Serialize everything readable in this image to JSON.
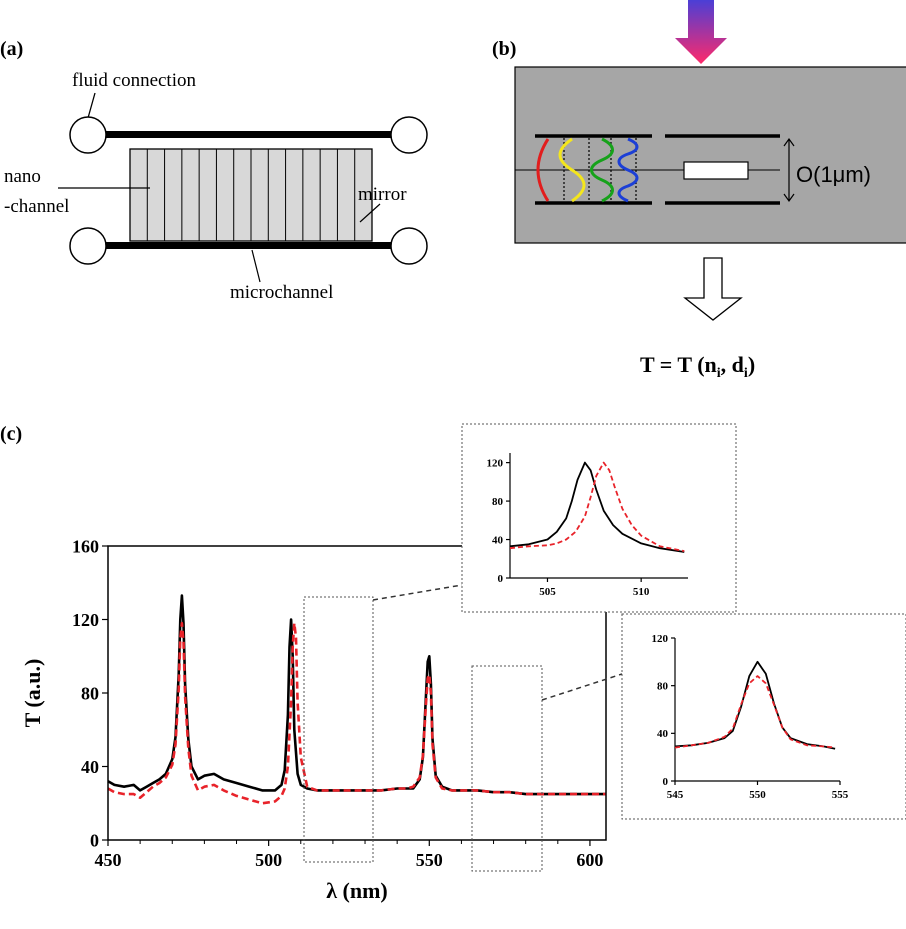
{
  "panel_a": {
    "label": "(a)",
    "fluid_connection": "fluid connection",
    "nano_line1": "nano",
    "nano_line2": "-channel",
    "mirror": "mirror",
    "microchannel": "microchannel"
  },
  "panel_b": {
    "label": "(b)",
    "scale": "O(1μm)",
    "formula": {
      "lhs": "T = T (",
      "n": "n",
      "n_sub": "i",
      "sep": ", ",
      "d": "d",
      "d_sub": "i",
      "close": ")"
    },
    "wave_colors": [
      "#e21d1d",
      "#f4e61c",
      "#16a21a",
      "#1c3fd6"
    ],
    "box_fill": "#a6a6a6",
    "arrow_gradient": [
      "#4b3fd6",
      "#ff2a6a"
    ]
  },
  "panel_c": {
    "label": "(c)"
  },
  "chart_data": [
    {
      "type": "line",
      "xlabel": "λ (nm)",
      "ylabel": "T (a.u.)",
      "xlim": [
        450,
        605
      ],
      "ylim": [
        0,
        160
      ],
      "x_ticks": [
        450,
        500,
        550,
        600
      ],
      "y_ticks": [
        0,
        40,
        80,
        120,
        160
      ],
      "grid": false,
      "series": [
        {
          "color": "#000000",
          "style": "solid",
          "x": [
            450,
            452,
            455,
            458,
            460,
            462,
            464,
            466,
            468,
            470,
            471,
            472,
            472.5,
            473,
            473.5,
            474,
            475,
            476,
            478,
            480,
            483,
            486,
            490,
            494,
            498,
            502,
            504,
            505,
            506,
            506.5,
            507,
            507.5,
            508,
            509,
            510,
            512,
            515,
            520,
            525,
            530,
            535,
            540,
            543,
            545,
            547,
            548,
            549,
            549.5,
            550,
            550.5,
            551,
            552,
            554,
            557,
            560,
            565,
            570,
            575,
            580,
            590,
            600,
            605
          ],
          "y": [
            32,
            30,
            29,
            30,
            27,
            29,
            31,
            33,
            36,
            44,
            56,
            90,
            120,
            133,
            118,
            85,
            55,
            40,
            33,
            35,
            36,
            33,
            31,
            29,
            27,
            27,
            30,
            38,
            68,
            105,
            120,
            100,
            60,
            36,
            30,
            28,
            27,
            27,
            27,
            27,
            27,
            28,
            28,
            28,
            33,
            45,
            80,
            97,
            100,
            85,
            55,
            35,
            29,
            27,
            27,
            27,
            26,
            26,
            25,
            25,
            25,
            25
          ]
        },
        {
          "color": "#e8232a",
          "style": "dashed",
          "x": [
            450,
            452,
            455,
            458,
            460,
            462,
            464,
            466,
            468,
            470,
            471,
            472,
            472.5,
            473,
            473.5,
            474,
            475,
            476,
            478,
            480,
            483,
            486,
            490,
            494,
            498,
            502,
            504,
            505,
            506,
            507,
            507.5,
            508,
            508.5,
            509,
            510,
            512,
            515,
            520,
            525,
            530,
            535,
            540,
            543,
            545,
            547,
            548,
            549,
            549.5,
            550,
            550.5,
            551,
            552,
            554,
            557,
            560,
            565,
            570,
            575,
            580,
            590,
            600,
            605
          ],
          "y": [
            28,
            26,
            25,
            25,
            23,
            26,
            29,
            31,
            34,
            41,
            52,
            82,
            110,
            118,
            108,
            78,
            50,
            35,
            27,
            29,
            30,
            27,
            24,
            22,
            20,
            21,
            24,
            28,
            40,
            75,
            105,
            118,
            110,
            75,
            45,
            29,
            27,
            27,
            27,
            27,
            27,
            28,
            28,
            29,
            34,
            46,
            75,
            88,
            90,
            80,
            52,
            34,
            28,
            27,
            27,
            27,
            26,
            26,
            25,
            25,
            25,
            25
          ]
        }
      ]
    },
    {
      "type": "line",
      "title": "",
      "xlim": [
        503,
        512.5
      ],
      "ylim": [
        0,
        130
      ],
      "x_ticks": [
        505,
        510
      ],
      "y_ticks": [
        0,
        40,
        80,
        120
      ],
      "series": [
        {
          "color": "#000000",
          "style": "solid",
          "x": [
            503,
            504,
            505,
            505.5,
            506,
            506.3,
            506.6,
            507,
            507.3,
            507.6,
            508,
            508.5,
            509,
            510,
            511,
            512.3
          ],
          "y": [
            33,
            35,
            40,
            48,
            62,
            80,
            102,
            120,
            112,
            92,
            70,
            55,
            46,
            36,
            31,
            27
          ]
        },
        {
          "color": "#e8232a",
          "style": "dashed",
          "x": [
            503,
            504,
            505,
            505.5,
            506,
            506.5,
            507,
            507.3,
            507.6,
            508,
            508.3,
            508.6,
            509,
            509.5,
            510,
            511,
            512.3
          ],
          "y": [
            31,
            33,
            34,
            36,
            40,
            48,
            64,
            84,
            106,
            120,
            112,
            94,
            72,
            55,
            44,
            33,
            28
          ]
        }
      ]
    },
    {
      "type": "line",
      "title": "",
      "xlim": [
        545,
        555
      ],
      "ylim": [
        0,
        120
      ],
      "x_ticks": [
        545,
        550,
        555
      ],
      "y_ticks": [
        0,
        40,
        80,
        120
      ],
      "series": [
        {
          "color": "#000000",
          "style": "solid",
          "x": [
            545,
            546,
            547,
            548,
            548.5,
            549,
            549.5,
            550,
            550.5,
            551,
            551.5,
            552,
            553,
            554,
            554.7
          ],
          "y": [
            29,
            30,
            32,
            36,
            42,
            62,
            88,
            100,
            90,
            65,
            45,
            36,
            31,
            29,
            27
          ]
        },
        {
          "color": "#e8232a",
          "style": "dashed",
          "x": [
            545,
            546,
            547,
            548,
            548.5,
            549,
            549.5,
            550,
            550.5,
            551,
            551.5,
            552,
            553,
            554,
            554.7
          ],
          "y": [
            28,
            30,
            32,
            37,
            44,
            64,
            82,
            88,
            82,
            64,
            45,
            35,
            30,
            29,
            28
          ]
        }
      ]
    }
  ]
}
